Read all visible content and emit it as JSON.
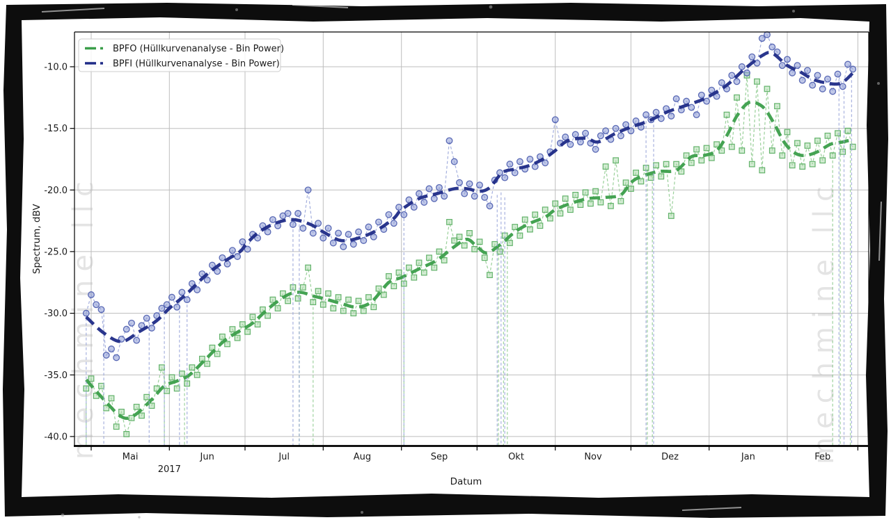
{
  "watermark_text": "mechmine llc",
  "legend": {
    "items": [
      {
        "label": "BPFO (Hüllkurvenanalyse - Bin Power)",
        "color": "#3b9e4a"
      },
      {
        "label": "BPFI (Hüllkurvenanalyse - Bin Power)",
        "color": "#1f2b87"
      }
    ]
  },
  "chart_data": {
    "type": "scatter",
    "title": "",
    "xlabel": "Datum",
    "ylabel": "Spectrum, dBV",
    "year_label": "2017",
    "grid": true,
    "legend_position": "upper left",
    "x_axis": {
      "unit": "days from 2017-04-29",
      "month_ticks": [
        {
          "label": "Mai",
          "day": 2
        },
        {
          "label": "Jun",
          "day": 33
        },
        {
          "label": "Jul",
          "day": 63
        },
        {
          "label": "Aug",
          "day": 94
        },
        {
          "label": "Sep",
          "day": 125
        },
        {
          "label": "Okt",
          "day": 155
        },
        {
          "label": "Nov",
          "day": 186
        },
        {
          "label": "Dez",
          "day": 216
        },
        {
          "label": "Jan",
          "day": 247
        },
        {
          "label": "Feb",
          "day": 278
        },
        {
          "label": "",
          "day": 306
        }
      ]
    },
    "y_axis": {
      "ticks": [
        -10,
        -15,
        -20,
        -25,
        -30,
        -35,
        -40
      ],
      "ylim": [
        -40.8,
        -7.0
      ],
      "tick_format": "one_decimal"
    },
    "sampling": {
      "t0": 0,
      "dt": 2,
      "t_end": 304
    },
    "series": [
      {
        "short_name": "BPFO",
        "name": "BPFO (Hüllkurvenanalyse - Bin Power)",
        "marker": "square",
        "trend_color": "#3b9e4a",
        "marker_edge": "#53ab5c",
        "marker_fill": "#a8daa8",
        "line_color": "#8fcb8f",
        "values": [
          -36.1,
          -35.3,
          -36.7,
          -35.9,
          -37.7,
          -36.9,
          -39.2,
          -38.0,
          -39.8,
          -38.5,
          -37.6,
          -38.3,
          -36.8,
          -37.5,
          -36.1,
          -34.4,
          -36.3,
          -35.2,
          -36.1,
          -34.9,
          -35.7,
          -34.4,
          -35.0,
          -33.7,
          -34.1,
          -32.8,
          -33.3,
          -31.9,
          -32.5,
          -31.3,
          -32.0,
          -30.9,
          -31.5,
          -30.3,
          -30.9,
          -29.7,
          -30.2,
          -28.9,
          -29.6,
          -28.4,
          -29.0,
          -27.9,
          -28.8,
          -27.9,
          -26.3,
          -29.1,
          -28.2,
          -29.3,
          -28.4,
          -29.6,
          -28.7,
          -29.8,
          -28.9,
          -30.0,
          -29.0,
          -29.8,
          -28.7,
          -29.5,
          -28.0,
          -28.5,
          -27.0,
          -27.8,
          -26.7,
          -27.6,
          -26.3,
          -27.1,
          -25.9,
          -26.7,
          -25.5,
          -26.3,
          -25.0,
          -25.7,
          -22.6,
          -24.1,
          -23.8,
          -24.5,
          -23.5,
          -24.8,
          -24.2,
          -25.5,
          -26.9,
          -24.4,
          -25.0,
          -23.7,
          -24.3,
          -23.0,
          -23.7,
          -22.4,
          -23.2,
          -22.0,
          -22.9,
          -21.6,
          -22.3,
          -21.1,
          -21.9,
          -20.7,
          -21.6,
          -20.4,
          -21.2,
          -20.2,
          -21.1,
          -20.1,
          -21.0,
          -18.1,
          -21.3,
          -17.6,
          -20.9,
          -19.4,
          -19.9,
          -18.6,
          -19.3,
          -18.2,
          -19.0,
          -18.0,
          -18.9,
          -17.9,
          -22.1,
          -17.9,
          -18.5,
          -17.2,
          -17.8,
          -16.7,
          -17.6,
          -16.6,
          -17.4,
          -16.3,
          -16.8,
          -13.9,
          -16.5,
          -12.5,
          -16.8,
          -10.7,
          -17.9,
          -11.2,
          -18.4,
          -11.8,
          -16.8,
          -13.2,
          -17.2,
          -15.3,
          -18.0,
          -16.2,
          -18.1,
          -16.4,
          -17.9,
          -16.0,
          -17.6,
          -15.6,
          -17.2,
          -15.4,
          -16.9,
          -15.2,
          -16.5
        ],
        "trend": {
          "days": [
            0,
            7,
            14,
            19,
            26,
            31,
            36,
            41,
            48,
            55,
            62,
            66,
            73,
            80,
            85,
            90,
            94,
            101,
            107,
            113,
            120,
            125,
            132,
            139,
            146,
            151,
            155,
            159,
            165,
            170,
            176,
            182,
            186,
            192,
            199,
            206,
            212,
            216,
            220,
            227,
            234,
            240,
            245,
            250,
            254,
            258,
            262,
            265,
            269,
            273,
            277,
            281,
            285,
            290,
            295,
            300,
            304
          ],
          "values": [
            -35.4,
            -37.0,
            -38.4,
            -38.3,
            -37.0,
            -35.9,
            -35.5,
            -35.0,
            -33.6,
            -32.2,
            -31.3,
            -30.8,
            -29.5,
            -28.5,
            -28.3,
            -28.6,
            -28.8,
            -29.2,
            -29.5,
            -29.1,
            -27.5,
            -27.1,
            -26.4,
            -25.7,
            -24.6,
            -24.0,
            -24.6,
            -25.1,
            -24.3,
            -23.4,
            -22.7,
            -22.2,
            -21.6,
            -21.1,
            -20.7,
            -20.6,
            -20.4,
            -19.4,
            -18.9,
            -18.5,
            -18.4,
            -17.3,
            -17.2,
            -16.8,
            -15.6,
            -14.0,
            -13.0,
            -12.9,
            -13.4,
            -14.7,
            -16.2,
            -17.0,
            -17.2,
            -16.9,
            -16.3,
            -16.1,
            -15.9
          ]
        },
        "drops": [
          [
            0,
            -36.1
          ],
          [
            31,
            -34.4
          ],
          [
            39,
            -35.3
          ],
          [
            84.5,
            -28.7
          ],
          [
            90,
            -29.1
          ],
          [
            126,
            -27.6
          ],
          [
            163.5,
            -24.7
          ],
          [
            165.5,
            -24.4
          ],
          [
            167,
            -24.6
          ],
          [
            222.5,
            -18.3
          ],
          [
            224.5,
            -18.9
          ],
          [
            296,
            -17.2
          ],
          [
            299,
            -15.5
          ],
          [
            303,
            -16.4
          ]
        ]
      },
      {
        "short_name": "BPFI",
        "name": "BPFI (Hüllkurvenanalyse - Bin Power)",
        "marker": "circle",
        "trend_color": "#1f2b87",
        "marker_edge": "#4b5cae",
        "marker_fill": "#8d9ad6",
        "line_color": "#9aa6da",
        "values": [
          -30.0,
          -28.5,
          -29.3,
          -29.7,
          -33.4,
          -32.9,
          -33.6,
          -32.1,
          -31.3,
          -30.8,
          -32.2,
          -31.0,
          -30.4,
          -31.2,
          -30.2,
          -29.6,
          -29.3,
          -28.7,
          -29.5,
          -28.3,
          -28.9,
          -27.6,
          -28.1,
          -26.8,
          -27.3,
          -26.1,
          -26.6,
          -25.5,
          -26.0,
          -24.9,
          -25.4,
          -24.2,
          -24.8,
          -23.6,
          -23.9,
          -22.9,
          -23.4,
          -22.4,
          -22.9,
          -22.1,
          -21.9,
          -22.8,
          -21.9,
          -23.1,
          -20.0,
          -23.5,
          -22.7,
          -23.9,
          -23.1,
          -24.3,
          -23.5,
          -24.6,
          -23.6,
          -24.4,
          -23.4,
          -24.1,
          -23.0,
          -23.8,
          -22.6,
          -23.2,
          -22.0,
          -22.7,
          -21.4,
          -22.0,
          -20.8,
          -21.4,
          -20.3,
          -21.0,
          -19.9,
          -20.7,
          -19.8,
          -20.5,
          -16.0,
          -17.7,
          -19.4,
          -20.3,
          -19.5,
          -20.5,
          -19.6,
          -20.6,
          -21.3,
          -19.2,
          -18.6,
          -19.0,
          -17.9,
          -18.6,
          -17.7,
          -18.3,
          -17.5,
          -18.1,
          -17.3,
          -17.8,
          -16.9,
          -14.3,
          -16.2,
          -15.7,
          -16.3,
          -15.5,
          -16.1,
          -15.4,
          -16.2,
          -16.7,
          -15.6,
          -15.2,
          -15.9,
          -15.0,
          -15.6,
          -14.7,
          -15.2,
          -14.4,
          -14.9,
          -13.9,
          -14.3,
          -13.7,
          -14.2,
          -13.4,
          -14.0,
          -12.6,
          -13.5,
          -12.8,
          -13.3,
          -13.9,
          -12.3,
          -12.8,
          -11.9,
          -12.4,
          -11.3,
          -11.8,
          -10.7,
          -11.2,
          -10.0,
          -10.5,
          -9.2,
          -9.7,
          -7.7,
          -7.4,
          -8.4,
          -8.8,
          -9.9,
          -9.4,
          -10.5,
          -9.9,
          -11.1,
          -10.3,
          -11.5,
          -10.7,
          -11.8,
          -11.0,
          -12.0,
          -10.6,
          -11.6,
          -9.8,
          -10.2
        ],
        "trend": {
          "days": [
            0,
            7,
            14,
            21,
            28,
            33,
            40,
            47,
            54,
            61,
            63,
            68,
            75,
            82,
            89,
            94,
            101,
            108,
            115,
            122,
            125,
            132,
            139,
            146,
            151,
            156,
            160,
            165,
            170,
            176,
            182,
            186,
            191,
            198,
            203,
            210,
            216,
            223,
            230,
            237,
            244,
            247,
            254,
            261,
            268,
            272,
            278,
            283,
            288,
            293,
            298,
            301,
            304
          ],
          "values": [
            -30.3,
            -31.6,
            -32.3,
            -31.5,
            -30.6,
            -29.6,
            -28.4,
            -27.0,
            -25.9,
            -25.0,
            -24.5,
            -23.5,
            -22.7,
            -22.4,
            -22.8,
            -23.4,
            -24.1,
            -23.9,
            -23.3,
            -22.3,
            -21.6,
            -20.7,
            -20.3,
            -19.9,
            -19.9,
            -20.1,
            -19.8,
            -18.6,
            -18.3,
            -18.0,
            -17.4,
            -16.8,
            -16.0,
            -15.8,
            -16.1,
            -15.4,
            -14.9,
            -14.4,
            -13.7,
            -13.2,
            -12.7,
            -12.4,
            -11.5,
            -10.2,
            -9.1,
            -8.9,
            -9.9,
            -10.4,
            -11.0,
            -11.3,
            -11.4,
            -11.1,
            -10.5
          ]
        },
        "drops": [
          [
            0,
            -30.0
          ],
          [
            7,
            -29.7
          ],
          [
            25,
            -30.4
          ],
          [
            31,
            -29.5
          ],
          [
            37,
            -28.6
          ],
          [
            40,
            -28.9
          ],
          [
            82,
            -22.8
          ],
          [
            84.5,
            -22.0
          ],
          [
            126,
            -21.9
          ],
          [
            163,
            -20.4
          ],
          [
            164.5,
            -20.2
          ],
          [
            166,
            -20.6
          ],
          [
            222,
            -14.0
          ],
          [
            225,
            -14.3
          ],
          [
            298.5,
            -10.6
          ],
          [
            300.5,
            -11.6
          ],
          [
            303.5,
            -9.9
          ]
        ]
      }
    ]
  }
}
